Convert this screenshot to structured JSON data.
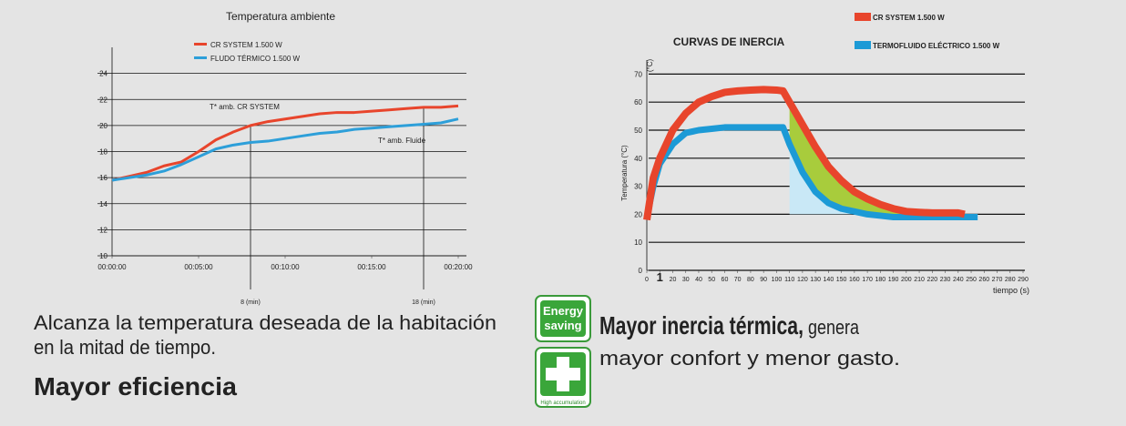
{
  "chart_data": [
    {
      "type": "line",
      "title": "Temperatura ambiente",
      "x": [
        0,
        1,
        2,
        3,
        4,
        5,
        6,
        7,
        8,
        9,
        10,
        11,
        12,
        13,
        14,
        15,
        16,
        17,
        18,
        19,
        20
      ],
      "series": [
        {
          "name": "CR SYSTEM 1.500 W",
          "color": "#e8452c",
          "values": [
            15.8,
            16.1,
            16.4,
            16.9,
            17.2,
            18.0,
            18.9,
            19.5,
            20.0,
            20.3,
            20.5,
            20.7,
            20.9,
            21.0,
            21.0,
            21.1,
            21.2,
            21.3,
            21.4,
            21.4,
            21.5
          ]
        },
        {
          "name": "FLUDO TÉRMICO 1.500 W",
          "color": "#2d9fd9",
          "values": [
            15.8,
            16.0,
            16.2,
            16.5,
            17.0,
            17.6,
            18.2,
            18.5,
            18.7,
            18.8,
            19.0,
            19.2,
            19.4,
            19.5,
            19.7,
            19.8,
            19.9,
            20.0,
            20.1,
            20.2,
            20.5
          ]
        }
      ],
      "xlim": [
        0,
        20
      ],
      "xticks": [
        {
          "value": 0,
          "label": "00:00:00"
        },
        {
          "value": 5,
          "label": "00:05:00"
        },
        {
          "value": 10,
          "label": "00:10:00"
        },
        {
          "value": 15,
          "label": "00:15:00"
        },
        {
          "value": 20,
          "label": "00:20:00"
        }
      ],
      "ylim": [
        10,
        26
      ],
      "yticks": [
        10,
        12,
        14,
        16,
        18,
        20,
        22,
        24
      ],
      "grid": true,
      "annotations": [
        "T* amb. CR SYSTEM",
        "T* amb. Fluide"
      ],
      "markers": [
        {
          "x": 8,
          "label": "8 (min)"
        },
        {
          "x": 18,
          "label": "18 (min)"
        }
      ]
    },
    {
      "type": "line",
      "title": "CURVAS DE INERCIA",
      "y_label": "Temperatura (°C)",
      "y_unit": "(°C)",
      "x_label": "tiempo (s)",
      "series": [
        {
          "name": "CR SYSTEM 1.500 W",
          "color": "#e8452c",
          "x": [
            0,
            5,
            10,
            20,
            30,
            40,
            50,
            60,
            70,
            80,
            90,
            100,
            105,
            110,
            120,
            130,
            140,
            150,
            160,
            170,
            180,
            190,
            200,
            210,
            220,
            230,
            240,
            245
          ],
          "values": [
            18,
            33,
            40,
            50,
            56,
            60,
            62,
            63.5,
            64,
            64.3,
            64.5,
            64.3,
            64,
            60,
            52,
            44,
            37,
            32,
            28,
            25.5,
            23.5,
            22,
            21,
            20.7,
            20.5,
            20.5,
            20.5,
            20
          ]
        },
        {
          "name": "TERMOFLUIDO ELÉCTRICO 1.500 W",
          "color": "#1c9ad6",
          "x": [
            0,
            5,
            10,
            20,
            30,
            40,
            50,
            60,
            70,
            80,
            90,
            100,
            105,
            110,
            120,
            130,
            140,
            150,
            160,
            170,
            180,
            190,
            200,
            210,
            220,
            230,
            240,
            250,
            255
          ],
          "values": [
            19,
            30,
            38,
            45,
            49,
            50,
            50.5,
            51,
            51,
            51,
            51,
            51,
            51,
            45,
            35,
            28,
            24,
            22,
            21,
            20,
            19.5,
            19,
            19,
            19,
            19,
            19,
            19,
            19,
            19
          ]
        }
      ],
      "xlim": [
        0,
        290
      ],
      "xticks": [
        0,
        {
          "value": 10,
          "label": "1"
        },
        20,
        30,
        40,
        50,
        60,
        70,
        80,
        90,
        100,
        110,
        120,
        130,
        140,
        150,
        160,
        170,
        180,
        190,
        200,
        210,
        220,
        230,
        240,
        250,
        260,
        270,
        280,
        290
      ],
      "ylim": [
        0,
        75
      ],
      "yticks": [
        0,
        10,
        20,
        30,
        40,
        50,
        60,
        70
      ],
      "grid": true
    }
  ],
  "captions": {
    "left": {
      "lines": [
        "Alcanza la temperatura deseada de la habitación",
        "en la mitad de tiempo."
      ],
      "heading": "Mayor eficiencia"
    },
    "right": {
      "heading": "Mayor inercia térmica,",
      "rest": "genera",
      "line2": "mayor confort y menor gasto."
    }
  },
  "badges": [
    {
      "lines": [
        "Energy",
        "saving"
      ]
    },
    {
      "lines": [
        "High accumulation"
      ]
    }
  ]
}
